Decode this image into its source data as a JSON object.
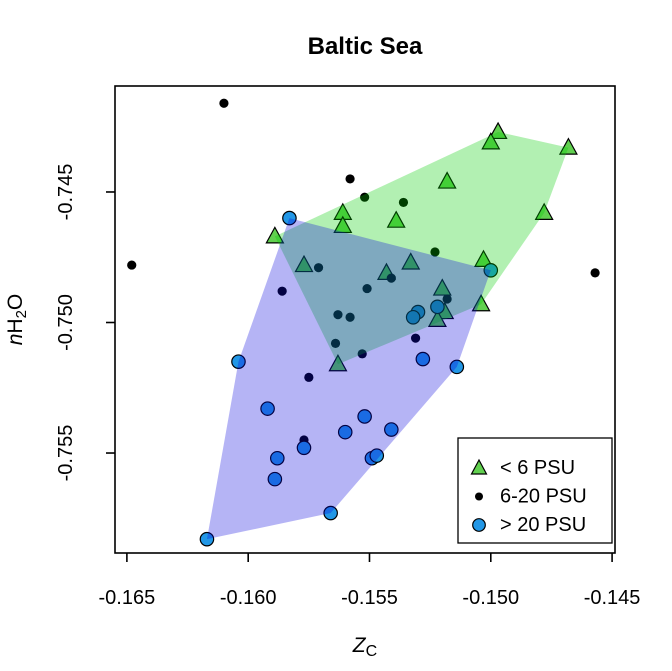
{
  "title": "Baltic Sea",
  "axes": {
    "x": {
      "label_base": "Z",
      "label_base_italic": true,
      "label_sub": "C",
      "range": [
        -0.16549,
        -0.14488
      ],
      "ticks": [
        {
          "value": -0.165,
          "label": "-0.165"
        },
        {
          "value": -0.16,
          "label": "-0.160"
        },
        {
          "value": -0.155,
          "label": "-0.155"
        },
        {
          "value": -0.15,
          "label": "-0.150"
        },
        {
          "value": -0.145,
          "label": "-0.145"
        }
      ]
    },
    "y": {
      "label_pre_italic": "n",
      "label_base": "H",
      "label_sub": "2",
      "label_post": "O",
      "range": [
        -0.75883,
        -0.74094
      ],
      "ticks": [
        {
          "value": -0.745,
          "label": "-0.745"
        },
        {
          "value": -0.75,
          "label": "-0.750"
        },
        {
          "value": -0.755,
          "label": "-0.755"
        }
      ]
    }
  },
  "chart_data": {
    "type": "scatter",
    "title": "Baltic Sea",
    "xlabel": "Z_C",
    "ylabel": "nH2O",
    "grid": false,
    "xlim": [
      -0.16549,
      -0.14488
    ],
    "ylim": [
      -0.75883,
      -0.74094
    ],
    "series": [
      {
        "name": "< 6 PSU",
        "marker": "triangle",
        "color": "#61D04F",
        "edge_color": "#000000",
        "points": [
          [
            -0.1497,
            -0.7427
          ],
          [
            -0.15,
            -0.7431
          ],
          [
            -0.1468,
            -0.7433
          ],
          [
            -0.1518,
            -0.7446
          ],
          [
            -0.1478,
            -0.7458
          ],
          [
            -0.1561,
            -0.7458
          ],
          [
            -0.1561,
            -0.7463
          ],
          [
            -0.1539,
            -0.7461
          ],
          [
            -0.1589,
            -0.7467
          ],
          [
            -0.1503,
            -0.7476
          ],
          [
            -0.1504,
            -0.7493
          ],
          [
            -0.1577,
            -0.7478
          ],
          [
            -0.1543,
            -0.7481
          ],
          [
            -0.1533,
            -0.7477
          ],
          [
            -0.152,
            -0.7487
          ],
          [
            -0.1519,
            -0.7496
          ],
          [
            -0.1522,
            -0.7499
          ],
          [
            -0.1563,
            -0.7516
          ]
        ]
      },
      {
        "name": "6-20 PSU",
        "marker": "dot",
        "color": "#000000",
        "points": [
          [
            -0.161,
            -0.7416
          ],
          [
            -0.1648,
            -0.7478
          ],
          [
            -0.1558,
            -0.7445
          ],
          [
            -0.1552,
            -0.7452
          ],
          [
            -0.1536,
            -0.7454
          ],
          [
            -0.1523,
            -0.7473
          ],
          [
            -0.1571,
            -0.7479
          ],
          [
            -0.1586,
            -0.7488
          ],
          [
            -0.1541,
            -0.7483
          ],
          [
            -0.1551,
            -0.7487
          ],
          [
            -0.1518,
            -0.7491
          ],
          [
            -0.1563,
            -0.7497
          ],
          [
            -0.1558,
            -0.7498
          ],
          [
            -0.1531,
            -0.7506
          ],
          [
            -0.1564,
            -0.7508
          ],
          [
            -0.1553,
            -0.7512
          ],
          [
            -0.1575,
            -0.7521
          ],
          [
            -0.1577,
            -0.7545
          ],
          [
            -0.1457,
            -0.7481
          ]
        ]
      },
      {
        "name": "> 20 PSU",
        "marker": "circle",
        "color": "#2297E6",
        "edge_color": "#000000",
        "points": [
          [
            -0.1583,
            -0.746
          ],
          [
            -0.15,
            -0.748
          ],
          [
            -0.1522,
            -0.7494
          ],
          [
            -0.153,
            -0.7496
          ],
          [
            -0.1532,
            -0.7498
          ],
          [
            -0.1528,
            -0.7514
          ],
          [
            -0.1514,
            -0.7517
          ],
          [
            -0.1604,
            -0.7515
          ],
          [
            -0.1592,
            -0.7533
          ],
          [
            -0.1552,
            -0.7536
          ],
          [
            -0.1541,
            -0.7541
          ],
          [
            -0.156,
            -0.7542
          ],
          [
            -0.1577,
            -0.7548
          ],
          [
            -0.1588,
            -0.7552
          ],
          [
            -0.1549,
            -0.7552
          ],
          [
            -0.1547,
            -0.7551
          ],
          [
            -0.1589,
            -0.756
          ],
          [
            -0.1566,
            -0.7573
          ],
          [
            -0.1617,
            -0.7583
          ]
        ]
      }
    ],
    "hulls": [
      {
        "series": "< 6 PSU",
        "fill": "rgba(0,205,0,0.30)",
        "vertices": [
          [
            -0.1589,
            -0.7467
          ],
          [
            -0.1497,
            -0.7427
          ],
          [
            -0.1468,
            -0.7433
          ],
          [
            -0.1478,
            -0.7458
          ],
          [
            -0.1504,
            -0.7493
          ],
          [
            -0.1563,
            -0.7516
          ]
        ]
      },
      {
        "series": "> 20 PSU",
        "fill": "rgba(10,5,222,0.30)",
        "vertices": [
          [
            -0.1583,
            -0.746
          ],
          [
            -0.15,
            -0.748
          ],
          [
            -0.1514,
            -0.7517
          ],
          [
            -0.1566,
            -0.7573
          ],
          [
            -0.1617,
            -0.7583
          ],
          [
            -0.1604,
            -0.7515
          ]
        ]
      }
    ],
    "legend": {
      "position": "bottomright",
      "entries": [
        {
          "label": "< 6 PSU",
          "marker": "triangle",
          "color": "#61D04F"
        },
        {
          "label": "6-20 PSU",
          "marker": "dot",
          "color": "#000000"
        },
        {
          "label": "> 20 PSU",
          "marker": "circle",
          "color": "#2297E6"
        }
      ]
    }
  }
}
